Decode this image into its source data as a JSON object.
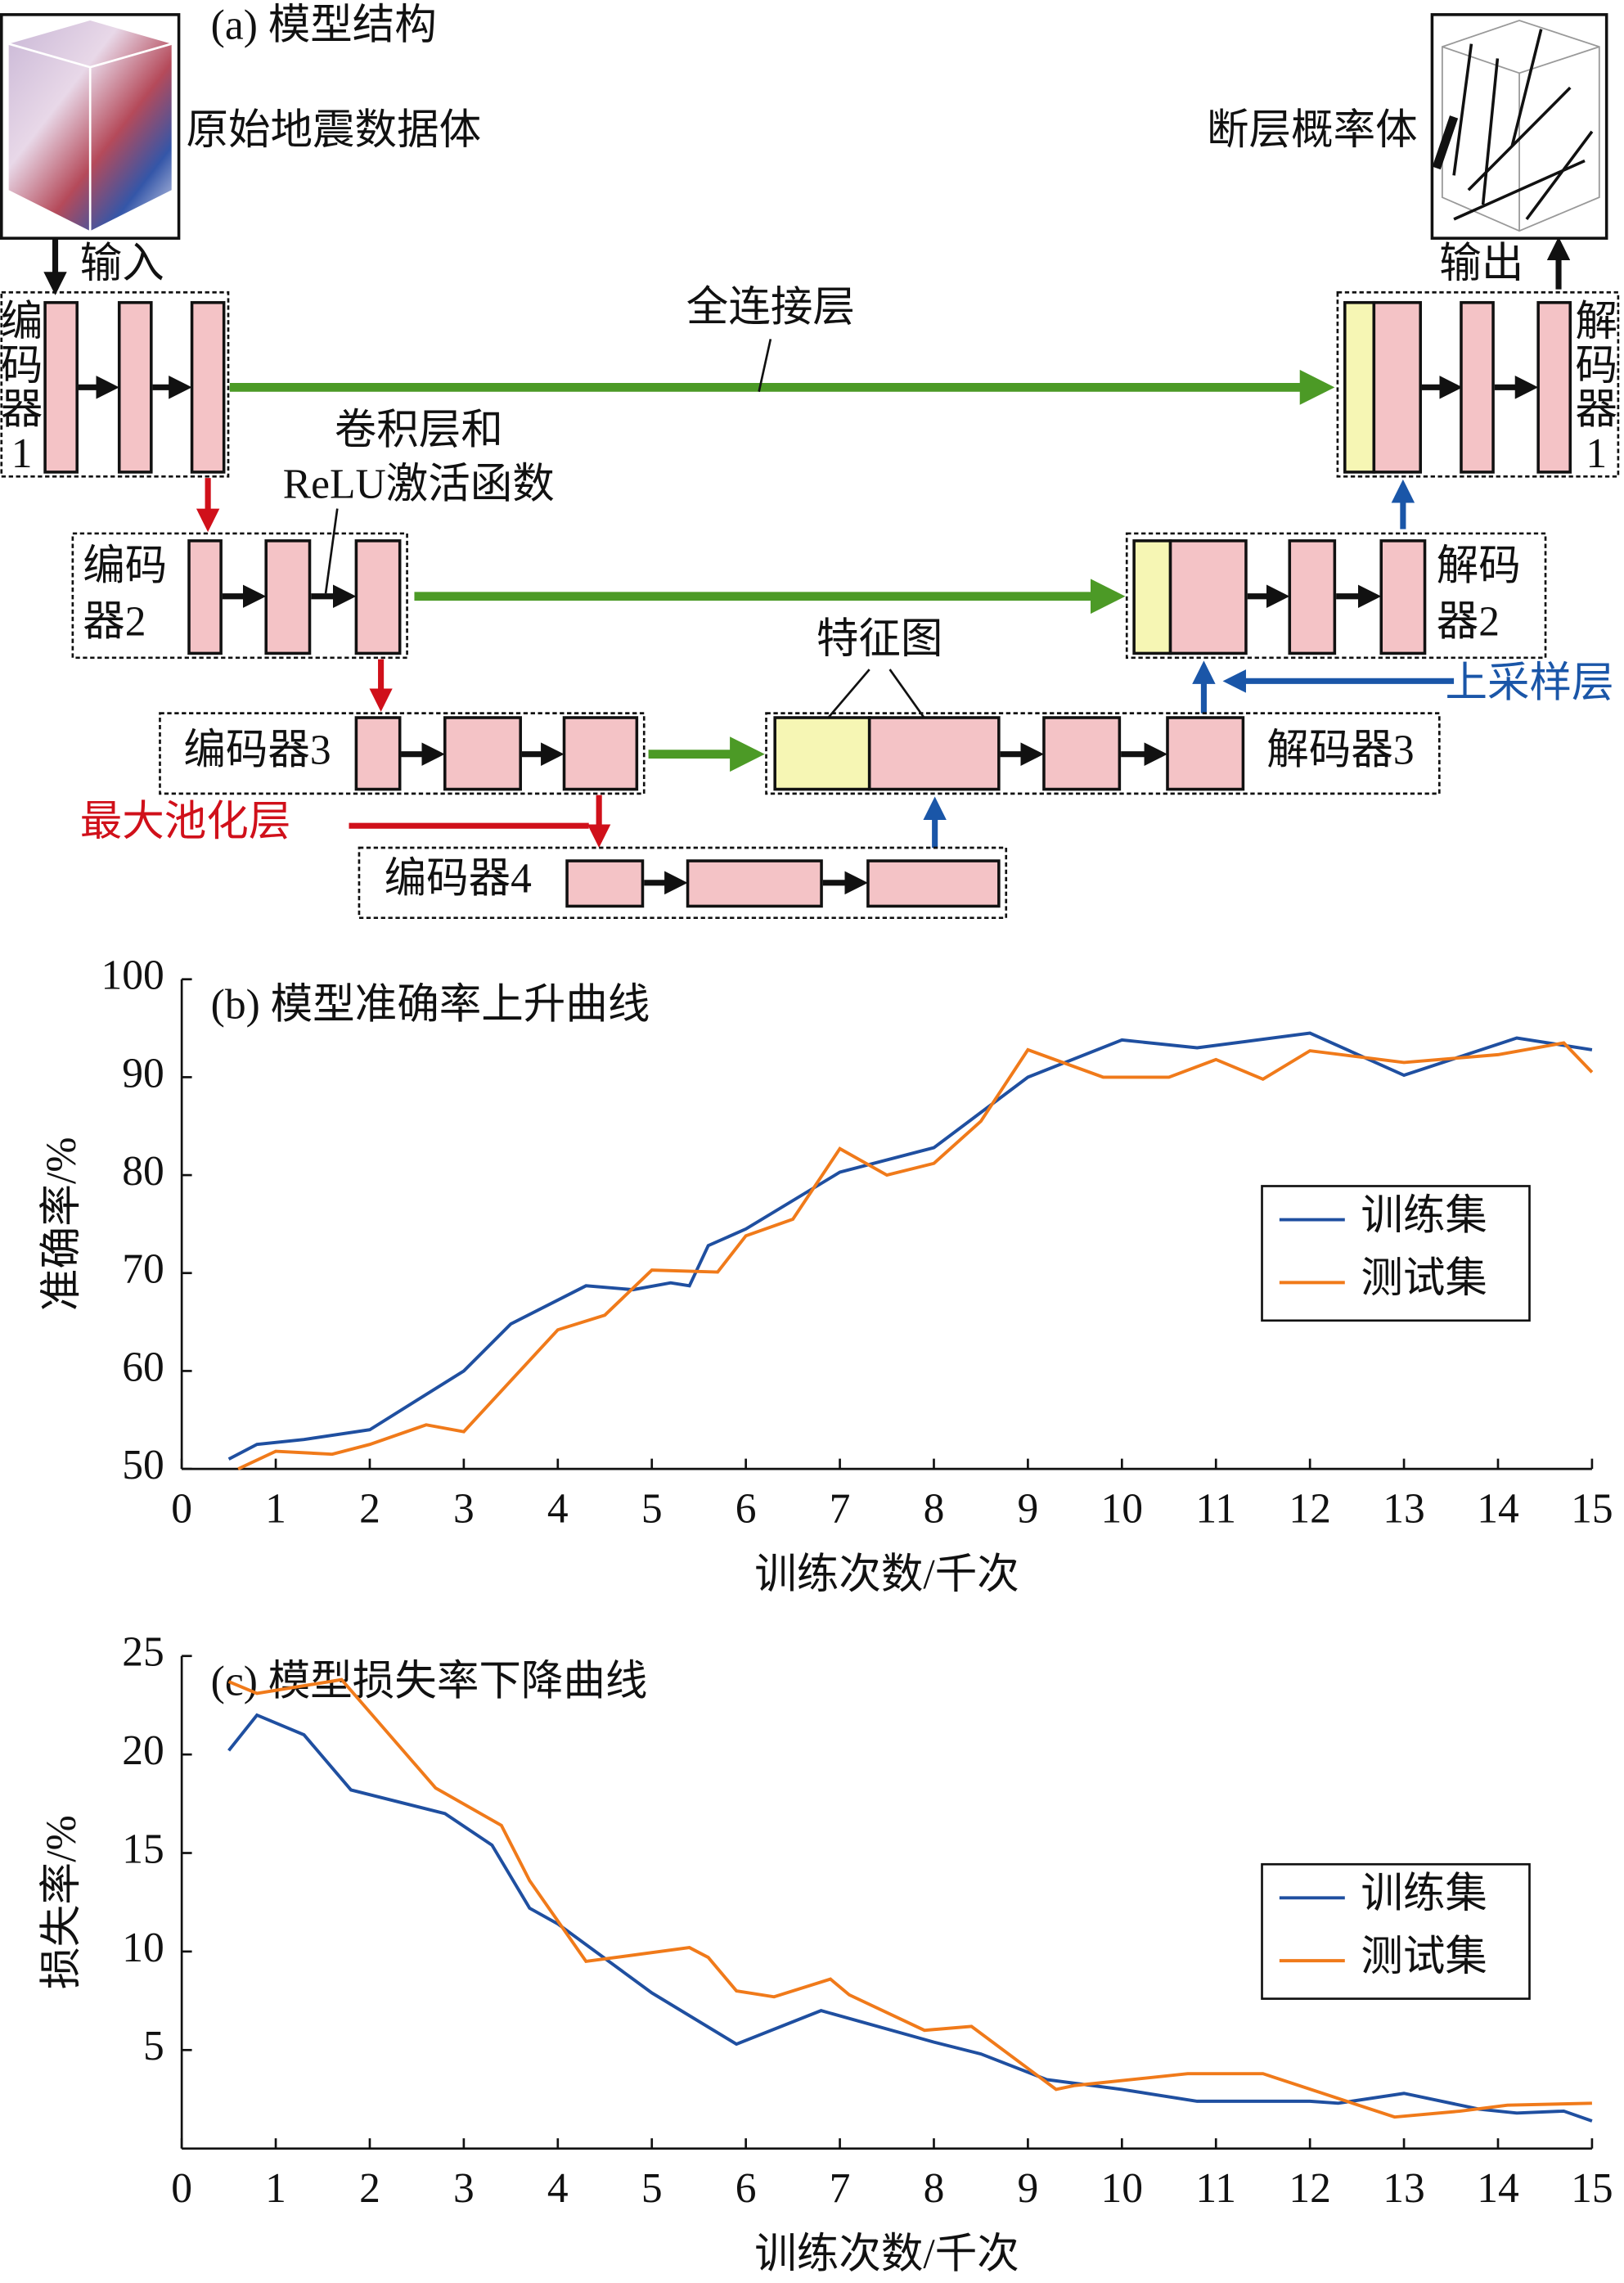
{
  "diagram": {
    "title": "(a) 模型结构",
    "input_label": "原始地震数据体",
    "output_label": "断层概率体",
    "input_arrow": "输入",
    "output_arrow": "输出",
    "fully_connected": "全连接层",
    "conv_label": [
      "卷积层和",
      "ReLU激活函数"
    ],
    "feature_map": "特征图",
    "upsampling": "上采样层",
    "max_pooling": "最大池化层",
    "encoders": [
      [
        "编",
        "码",
        "器",
        "1"
      ],
      [
        "编码",
        "器2"
      ],
      [
        "编码器3"
      ],
      [
        "编码器4"
      ]
    ],
    "decoders": [
      [
        "解",
        "码",
        "器",
        "1"
      ],
      [
        "解码",
        "器2"
      ],
      [
        "解码器3"
      ]
    ]
  },
  "chart_data": [
    {
      "type": "line",
      "title": "(b) 模型准确率上升曲线",
      "x_label": "训练次数/千次",
      "y_label": "准确率/%",
      "xlim": [
        0,
        15
      ],
      "xticks": [
        0,
        1,
        2,
        3,
        4,
        5,
        6,
        7,
        8,
        9,
        10,
        11,
        12,
        13,
        14,
        15
      ],
      "ylim": [
        50,
        100
      ],
      "yticks": [
        50,
        60,
        70,
        80,
        90,
        100
      ],
      "legend": "right",
      "series": [
        {
          "name": "训练集",
          "color": "#1f4fa0",
          "x": [
            0.5,
            0.8,
            1.3,
            2,
            3,
            3.5,
            4.3,
            4.8,
            5.2,
            5.4,
            5.6,
            6,
            7,
            8,
            9,
            10,
            10.8,
            12,
            13,
            14.2,
            15
          ],
          "values": [
            51,
            52.5,
            53,
            54,
            60,
            64.8,
            68.7,
            68.3,
            69,
            68.7,
            72.8,
            74.5,
            80.3,
            82.8,
            90,
            93.8,
            93,
            94.5,
            90.2,
            94,
            92.8
          ]
        },
        {
          "name": "测试集",
          "color": "#f07a1a",
          "x": [
            0.6,
            1,
            1.6,
            2,
            2.6,
            3,
            4,
            4.5,
            5,
            5.7,
            6,
            6.5,
            7,
            7.5,
            8,
            8.5,
            9,
            9.8,
            10.5,
            11,
            11.5,
            12,
            13,
            14,
            14.7,
            15
          ],
          "values": [
            50,
            51.8,
            51.5,
            52.5,
            54.5,
            53.8,
            64.2,
            65.7,
            70.3,
            70.1,
            73.8,
            75.5,
            82.7,
            80,
            81.2,
            85.5,
            92.8,
            90,
            90,
            91.8,
            89.8,
            92.7,
            91.5,
            92.3,
            93.5,
            90.5
          ]
        }
      ]
    },
    {
      "type": "line",
      "title": "(c) 模型损失率下降曲线",
      "x_label": "训练次数/千次",
      "y_label": "损失率/%",
      "xlim": [
        0,
        15
      ],
      "xticks": [
        0,
        1,
        2,
        3,
        4,
        5,
        6,
        7,
        8,
        9,
        10,
        11,
        12,
        13,
        14,
        15
      ],
      "ylim": [
        0,
        25
      ],
      "yticks": [
        5,
        10,
        15,
        20,
        25
      ],
      "legend": "right",
      "series": [
        {
          "name": "训练集",
          "color": "#1f4fa0",
          "x": [
            0.5,
            0.8,
            1.3,
            1.8,
            2.8,
            3.3,
            3.7,
            4,
            5,
            5.9,
            6.8,
            8,
            8.5,
            9.2,
            10,
            10.8,
            12,
            12.3,
            13,
            13.8,
            14.2,
            14.7,
            15
          ],
          "values": [
            20.2,
            22,
            21,
            18.2,
            17,
            15.4,
            12.2,
            11.4,
            7.9,
            5.3,
            7,
            5.4,
            4.8,
            3.5,
            3,
            2.4,
            2.4,
            2.3,
            2.8,
            2,
            1.8,
            1.9,
            1.4
          ]
        },
        {
          "name": "测试集",
          "color": "#f07a1a",
          "x": [
            0.5,
            0.8,
            1.7,
            2.7,
            3.4,
            3.7,
            4.3,
            5.4,
            5.6,
            5.9,
            6.3,
            6.9,
            7.1,
            7.9,
            8.4,
            9.3,
            9.5,
            10.7,
            11.5,
            12.9,
            13.6,
            14.1,
            15
          ],
          "values": [
            23.7,
            23.1,
            23.8,
            18.3,
            16.4,
            13.6,
            9.5,
            10.2,
            9.7,
            8,
            7.7,
            8.6,
            7.8,
            6,
            6.2,
            3,
            3.2,
            3.8,
            3.8,
            1.6,
            1.9,
            2.2,
            2.3
          ]
        }
      ]
    }
  ]
}
